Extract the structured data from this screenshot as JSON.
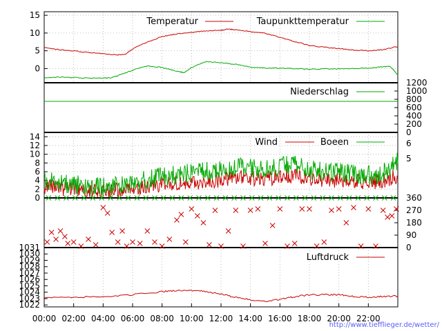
{
  "credit": "http://www.tiefflieger.de/wetter/",
  "colors": {
    "red": "#cc0000",
    "green": "#00aa00",
    "marker_red": "#cc0000",
    "marker_green": "#00aa00",
    "grid": "#aaaaaa",
    "axis": "#000000",
    "credit": "#5a5aff"
  },
  "x_axis": {
    "ticks": [
      "00:00",
      "02:00",
      "04:00",
      "06:00",
      "08:00",
      "10:00",
      "12:00",
      "14:00",
      "16:00",
      "18:00",
      "20:00",
      "22:00"
    ],
    "range_hours": [
      0,
      24
    ]
  },
  "chart_data": [
    {
      "type": "line",
      "panel": "temperature",
      "ylim": [
        -4,
        16
      ],
      "y_ticks": [
        "0",
        "5",
        "10",
        "15"
      ],
      "grid": true,
      "legend": "top",
      "series": [
        {
          "name": "Temperatur",
          "color": "#cc0000",
          "x": [
            0,
            1,
            2,
            3,
            4,
            5,
            5.5,
            6,
            7,
            8,
            9,
            10,
            11,
            12,
            12.5,
            13,
            14,
            15,
            16,
            17,
            18,
            19,
            20,
            21,
            22,
            23,
            24
          ],
          "y": [
            6,
            5.3,
            5,
            4.5,
            4.2,
            3.8,
            4,
            5.5,
            7.5,
            9,
            9.8,
            10.2,
            10.6,
            10.8,
            11.1,
            10.9,
            10.4,
            10,
            8.8,
            7.6,
            6.5,
            6,
            5.6,
            5.2,
            5,
            5.3,
            6.2
          ]
        },
        {
          "name": "Taupunkttemperatur",
          "color": "#00aa00",
          "x": [
            0,
            1,
            2,
            3,
            4,
            4.5,
            5,
            6,
            7,
            8,
            9,
            9.5,
            10,
            11,
            12,
            13,
            14,
            15,
            16,
            17,
            18,
            19,
            20,
            21,
            22,
            23,
            23.5,
            24
          ],
          "y": [
            -2.6,
            -2.4,
            -2.5,
            -2.7,
            -2.7,
            -2.6,
            -2,
            -0.5,
            0.8,
            0.3,
            -0.7,
            -1.2,
            0.3,
            2,
            1.6,
            1.2,
            0.4,
            0.2,
            0.1,
            0,
            -0.2,
            -0.1,
            -0.1,
            0,
            0.1,
            0.5,
            0.6,
            -1.8
          ]
        }
      ]
    },
    {
      "type": "line",
      "panel": "precipitation",
      "ylim": [
        0,
        1200
      ],
      "y_ticks": [
        "0",
        "200",
        "400",
        "600",
        "800",
        "1000",
        "1200"
      ],
      "legend": "top-right",
      "series": [
        {
          "name": "Niederschlag",
          "color": "#00aa00",
          "x": [
            0,
            24
          ],
          "y": [
            750,
            750
          ]
        }
      ]
    },
    {
      "type": "line",
      "panel": "wind",
      "ylim": [
        0,
        15
      ],
      "y_ticks": [
        "0",
        "2",
        "4",
        "6",
        "8",
        "10",
        "12",
        "14"
      ],
      "right_ticks": [
        "6",
        "5"
      ],
      "grid": true,
      "legend": "top",
      "series": [
        {
          "name": "Wind",
          "color": "#cc0000",
          "x": [
            0,
            1,
            2,
            3,
            4,
            5,
            6,
            7,
            8,
            9,
            10,
            11,
            12,
            13,
            14,
            15,
            16,
            17,
            18,
            19,
            20,
            21,
            22,
            23,
            24
          ],
          "y": [
            2.5,
            2,
            1.8,
            1.5,
            1.4,
            1.6,
            2,
            2.5,
            3,
            3.2,
            3.5,
            3.5,
            4,
            4.5,
            4.3,
            4.2,
            4.5,
            5,
            4.4,
            4,
            3.8,
            3.6,
            3.4,
            3.6,
            5
          ]
        },
        {
          "name": "Boeen",
          "color": "#00aa00",
          "x": [
            0,
            1,
            2,
            3,
            4,
            5,
            6,
            7,
            8,
            9,
            10,
            11,
            12,
            13,
            14,
            15,
            16,
            17,
            18,
            19,
            20,
            21,
            22,
            23,
            24
          ],
          "y": [
            4,
            3.2,
            2.8,
            2.4,
            2.2,
            2.6,
            3.2,
            4,
            4.6,
            5,
            5.6,
            5.8,
            6.2,
            6.8,
            6.6,
            6.4,
            7,
            7.4,
            6.4,
            5.8,
            5.6,
            5.2,
            5,
            5.4,
            8
          ]
        }
      ]
    },
    {
      "type": "scatter",
      "panel": "wind_direction",
      "ylim": [
        -20,
        380
      ],
      "y_ticks": [
        "0",
        "90",
        "180",
        "270",
        "360"
      ],
      "series": [
        {
          "name": "",
          "marker": "x",
          "color": "#cc0000",
          "x": [
            0.2,
            0.5,
            0.8,
            1.1,
            1.4,
            1.6,
            2,
            2.5,
            3,
            3.5,
            4,
            4.3,
            4.6,
            5,
            5.3,
            5.6,
            6,
            6.5,
            7,
            7.5,
            8,
            8.5,
            9,
            9.3,
            9.6,
            10,
            10.4,
            10.8,
            11.2,
            11.6,
            12,
            12.5,
            13,
            13.5,
            14,
            14.5,
            15,
            15.5,
            16,
            16.5,
            17,
            17.5,
            18,
            18.5,
            19,
            19.5,
            20,
            20.5,
            21,
            21.5,
            22,
            22.5,
            23,
            23.3,
            23.6,
            23.9
          ],
          "y": [
            40,
            110,
            60,
            120,
            80,
            30,
            40,
            10,
            60,
            20,
            290,
            250,
            110,
            40,
            120,
            10,
            40,
            30,
            120,
            40,
            10,
            60,
            200,
            240,
            40,
            280,
            230,
            180,
            20,
            270,
            10,
            120,
            270,
            10,
            270,
            280,
            30,
            160,
            280,
            10,
            30,
            280,
            280,
            10,
            40,
            270,
            280,
            180,
            290,
            10,
            280,
            10,
            270,
            220,
            230,
            280
          ]
        },
        {
          "name": "",
          "marker": "x",
          "color": "#00aa00",
          "x": [
            0.3,
            0.9,
            1.5,
            2.1,
            2.7,
            3.3,
            3.9,
            4.5,
            5.1,
            5.7,
            6.3,
            6.9,
            7.5,
            8.1,
            8.7,
            9.3,
            9.9,
            10.5,
            11.1,
            11.7,
            12.3,
            12.9,
            13.5,
            14.1,
            14.7,
            15.3,
            15.9,
            16.5,
            17.1,
            17.7,
            18.3,
            18.9,
            19.5,
            20.1,
            20.7,
            21.3,
            21.9,
            22.5,
            23.1,
            23.7
          ],
          "y": [
            360,
            360,
            360,
            360,
            360,
            360,
            360,
            360,
            360,
            360,
            360,
            360,
            360,
            360,
            360,
            360,
            360,
            360,
            360,
            360,
            360,
            360,
            360,
            360,
            360,
            360,
            360,
            360,
            360,
            360,
            360,
            360,
            360,
            360,
            360,
            360,
            360,
            360,
            360,
            360
          ]
        }
      ]
    },
    {
      "type": "line",
      "panel": "pressure",
      "ylim": [
        1021.5,
        1031
      ],
      "y_ticks": [
        "1022",
        "1023",
        "1024",
        "1025",
        "1026",
        "1027",
        "1028",
        "1029",
        "1030",
        "1031"
      ],
      "legend": "top-right",
      "series": [
        {
          "name": "Luftdruck",
          "color": "#cc0000",
          "x": [
            0,
            2,
            4,
            6,
            8,
            9,
            10,
            11,
            12,
            13,
            14,
            15,
            16,
            17,
            18,
            19,
            20,
            21,
            22,
            23,
            24
          ],
          "y": [
            1023.2,
            1023.2,
            1023.3,
            1023.6,
            1024.1,
            1024.3,
            1024.3,
            1024.1,
            1023.7,
            1023.2,
            1022.8,
            1022.6,
            1022.9,
            1023.3,
            1023.6,
            1023.6,
            1023.6,
            1023.3,
            1023.2,
            1023.3,
            1023.4
          ]
        }
      ]
    }
  ]
}
